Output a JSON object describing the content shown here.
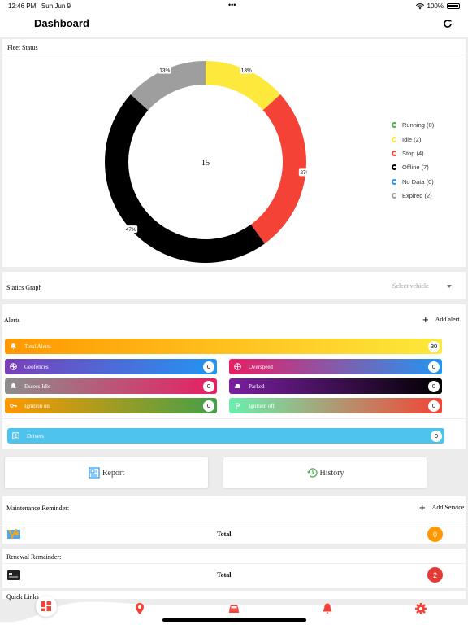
{
  "status_bar": {
    "time": "12:46 PM",
    "date": "Sun Jun 9",
    "battery": "100%"
  },
  "header": {
    "title": "Dashboard",
    "refresh_icon": "refresh-icon"
  },
  "fleet": {
    "title": "Fleet Status",
    "total": "15",
    "chart_data": {
      "type": "pie",
      "title": "",
      "center_label": "15",
      "slices": [
        {
          "label": "Idle",
          "value": 2,
          "percent": "13%",
          "color": "#fde93b"
        },
        {
          "label": "Stop",
          "value": 4,
          "percent": "27%",
          "color": "#f44336"
        },
        {
          "label": "Offline",
          "value": 7,
          "percent": "47%",
          "color": "#000000"
        },
        {
          "label": "Expired",
          "value": 2,
          "percent": "13%",
          "color": "#9e9e9e"
        }
      ],
      "legend_position": "right"
    },
    "legend": [
      {
        "label": "Running (0)",
        "color": "#4caf50"
      },
      {
        "label": "Idle (2)",
        "color": "#fde93b"
      },
      {
        "label": "Stop (4)",
        "color": "#f44336"
      },
      {
        "label": "Offline (7)",
        "color": "#000000"
      },
      {
        "label": "No Data (0)",
        "color": "#2196f3"
      },
      {
        "label": "Expired (2)",
        "color": "#9e9e9e"
      }
    ]
  },
  "graph": {
    "title": "Statics Graph",
    "select_placeholder": "Select vehicle"
  },
  "alerts": {
    "title": "Alerts",
    "add_label": "Add alert",
    "total": {
      "label": "Total Alerts",
      "count": "30"
    },
    "items": [
      {
        "label": "Geofences",
        "count": "0"
      },
      {
        "label": "Overspeed",
        "count": "0"
      },
      {
        "label": "Excess Idle",
        "count": "0"
      },
      {
        "label": "Parked",
        "count": "0"
      },
      {
        "label": "Ignition on",
        "count": "0"
      },
      {
        "label": "Ignition off",
        "count": "0"
      }
    ],
    "drivers": {
      "label": "Drivers",
      "count": "0"
    }
  },
  "buttons": {
    "report": "Report",
    "history": "History"
  },
  "maintenance": {
    "title": "Maintenance Reminder:",
    "add_label": "Add Service",
    "total_label": "Total",
    "count": "0"
  },
  "renewal": {
    "title": "Renewal Remainder:",
    "total_label": "Total",
    "count": "2"
  },
  "quick": {
    "title": "Quick Links"
  },
  "colors": {
    "accent": "#f44336",
    "orange": "#ff9800"
  }
}
